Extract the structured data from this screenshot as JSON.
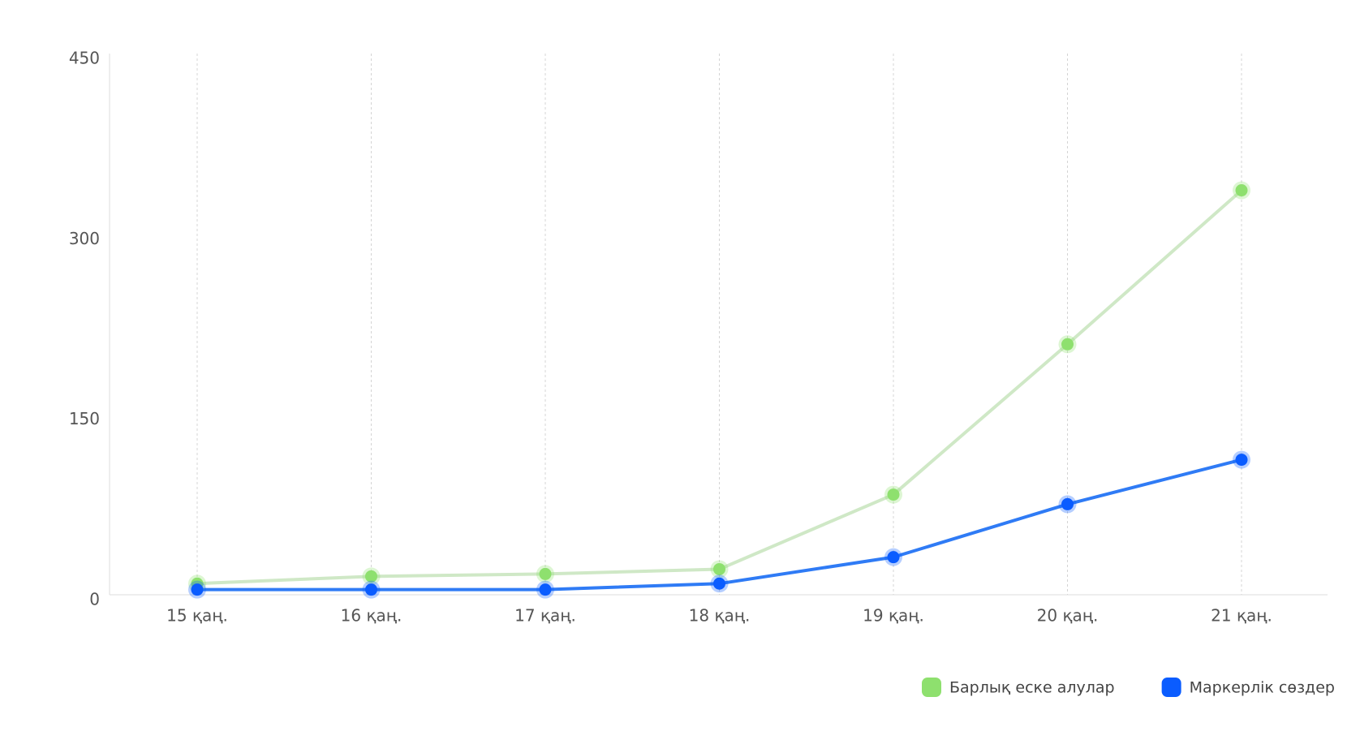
{
  "chart_data": {
    "type": "line",
    "categories": [
      "15 қаң.",
      "16 қаң.",
      "17 қаң.",
      "18 қаң.",
      "19 қаң.",
      "20 қаң.",
      "21 қаң."
    ],
    "series": [
      {
        "name": "Барлық еске алулар",
        "color": "#8ee06e",
        "line_color": "#cfe8c6",
        "values": [
          14,
          20,
          22,
          26,
          88,
          213,
          341
        ]
      },
      {
        "name": "Маркерлік сөздер",
        "color": "#0a5cff",
        "line_color": "#2f7bf5",
        "values": [
          9,
          9,
          9,
          14,
          36,
          80,
          117
        ]
      }
    ],
    "ylim": [
      0,
      450
    ],
    "yticks": [
      0,
      150,
      300,
      450
    ]
  }
}
